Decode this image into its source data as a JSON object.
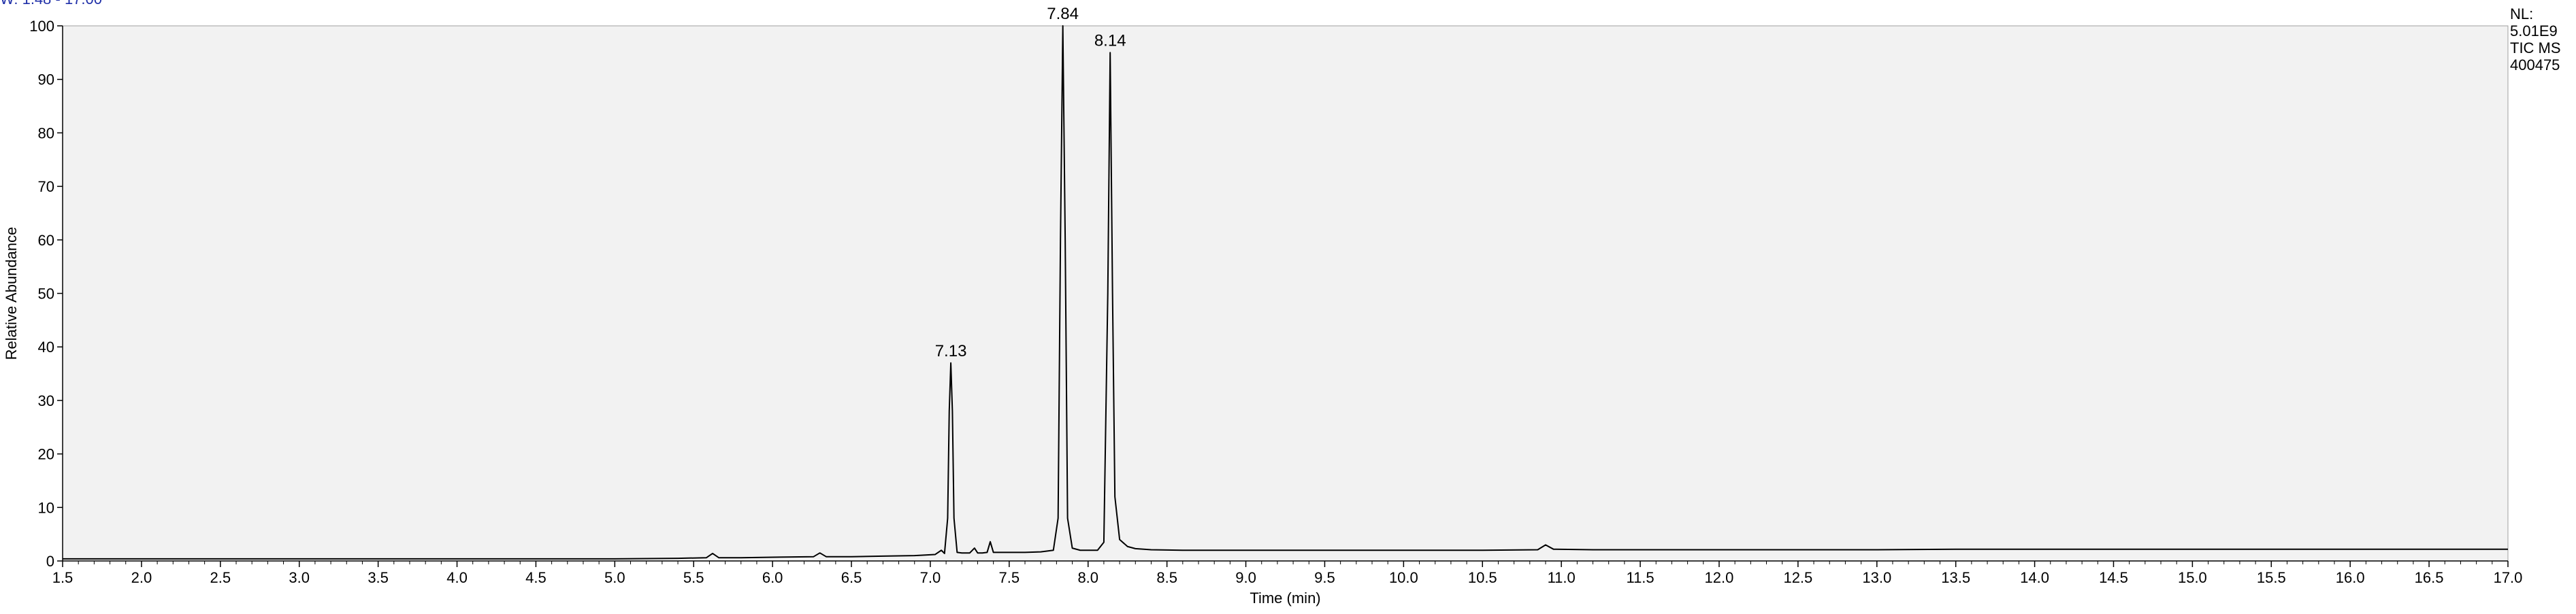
{
  "header_fragment": "W: 1.48 - 17.00",
  "info_box": {
    "lines": [
      "NL:",
      "5.01E9",
      "TIC MS",
      "400475"
    ]
  },
  "chart_data": {
    "type": "line",
    "title": "",
    "xlabel": "Time (min)",
    "ylabel": "Relative Abundance",
    "xlim": [
      1.5,
      17.0
    ],
    "ylim": [
      0,
      100
    ],
    "xticks": [
      1.5,
      2.0,
      2.5,
      3.0,
      3.5,
      4.0,
      4.5,
      5.0,
      5.5,
      6.0,
      6.5,
      7.0,
      7.5,
      8.0,
      8.5,
      9.0,
      9.5,
      10.0,
      10.5,
      11.0,
      11.5,
      12.0,
      12.5,
      13.0,
      13.5,
      14.0,
      14.5,
      15.0,
      15.5,
      16.0,
      16.5,
      17.0
    ],
    "xtick_labels": [
      "1.5",
      "2.0",
      "2.5",
      "3.0",
      "3.5",
      "4.0",
      "4.5",
      "5.0",
      "5.5",
      "6.0",
      "6.5",
      "7.0",
      "7.5",
      "8.0",
      "8.5",
      "9.0",
      "9.5",
      "10.0",
      "10.5",
      "11.0",
      "11.5",
      "12.0",
      "12.5",
      "13.0",
      "13.5",
      "14.0",
      "14.5",
      "15.0",
      "15.5",
      "16.0",
      "16.5",
      "17.0"
    ],
    "yticks": [
      0,
      10,
      20,
      30,
      40,
      50,
      60,
      70,
      80,
      90,
      100
    ],
    "ytick_labels": [
      "0",
      "10",
      "20",
      "30",
      "40",
      "50",
      "60",
      "70",
      "80",
      "90",
      "100"
    ],
    "grid": false,
    "background": "#f2f2f2",
    "line_color": "#000000",
    "series": [
      {
        "x": [
          1.5,
          1.8,
          2.2,
          2.6,
          3.0,
          3.4,
          3.8,
          4.2,
          4.6,
          5.0,
          5.4,
          5.58,
          5.62,
          5.66,
          5.8,
          6.0,
          6.26,
          6.3,
          6.34,
          6.5,
          6.7,
          6.9,
          7.03,
          7.07,
          7.09,
          7.11,
          7.12,
          7.13,
          7.14,
          7.15,
          7.17,
          7.2,
          7.25,
          7.28,
          7.3,
          7.33,
          7.36,
          7.38,
          7.4,
          7.45,
          7.5,
          7.6,
          7.7,
          7.78,
          7.81,
          7.825,
          7.84,
          7.855,
          7.87,
          7.9,
          7.95,
          8.0,
          8.06,
          8.1,
          8.125,
          8.14,
          8.155,
          8.17,
          8.2,
          8.25,
          8.3,
          8.4,
          8.6,
          9.0,
          9.5,
          10.0,
          10.5,
          10.85,
          10.9,
          10.95,
          11.2,
          12.0,
          13.0,
          13.5,
          14.0,
          15.0,
          16.0,
          17.0
        ],
        "y": [
          0.4,
          0.4,
          0.4,
          0.4,
          0.4,
          0.4,
          0.4,
          0.4,
          0.4,
          0.4,
          0.5,
          0.6,
          1.4,
          0.6,
          0.6,
          0.7,
          0.8,
          1.5,
          0.8,
          0.8,
          0.9,
          1.0,
          1.2,
          2.0,
          1.4,
          8.0,
          28.0,
          37.0,
          28.0,
          8.0,
          1.6,
          1.5,
          1.5,
          2.4,
          1.5,
          1.5,
          1.6,
          3.6,
          1.6,
          1.6,
          1.6,
          1.6,
          1.7,
          2.0,
          8.0,
          60.0,
          100.0,
          60.0,
          8.0,
          2.4,
          2.0,
          2.0,
          2.0,
          3.5,
          50.0,
          95.0,
          50.0,
          12.0,
          4.0,
          2.7,
          2.3,
          2.1,
          2.0,
          2.0,
          2.0,
          2.0,
          2.0,
          2.1,
          3.0,
          2.2,
          2.1,
          2.1,
          2.1,
          2.2,
          2.2,
          2.2,
          2.2,
          2.2
        ]
      }
    ],
    "peak_labels": [
      {
        "x": 7.13,
        "y": 37.0,
        "label": "7.13"
      },
      {
        "x": 7.84,
        "y": 100.0,
        "label": "7.84"
      },
      {
        "x": 8.14,
        "y": 95.0,
        "label": "8.14"
      }
    ]
  }
}
